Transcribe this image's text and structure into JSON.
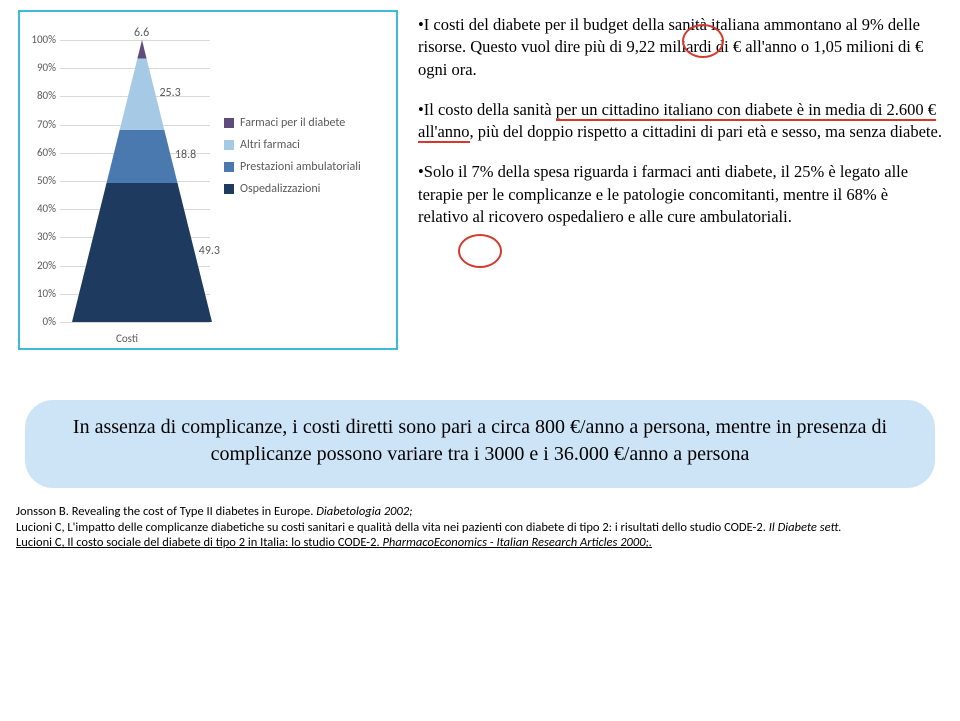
{
  "chart": {
    "type": "stacked-triangle-100pct",
    "y_ticks": [
      "100%",
      "90%",
      "80%",
      "70%",
      "60%",
      "50%",
      "40%",
      "30%",
      "20%",
      "10%",
      "0%"
    ],
    "x_label": "Costi",
    "series": [
      {
        "label": "Farmaci per il diabete",
        "value": 6.6,
        "color": "#604c7a"
      },
      {
        "label": "Altri farmaci",
        "value": 25.3,
        "color": "#a6c9e6"
      },
      {
        "label": "Prestazioni ambulatoriali",
        "value": 18.8,
        "color": "#4a79b0"
      },
      {
        "label": "Ospedalizzazioni",
        "value": 49.3,
        "color": "#1f3a5f"
      }
    ],
    "seg_label_color": "#5a5a5a",
    "grid_color": "#d9d9d9",
    "border_color": "#3fb9d6"
  },
  "bullets": {
    "b1_a": "I costi del diabete per il budget della sanità italiana ammontano al ",
    "b1_pct": "9%",
    "b1_b": " delle risorse. Questo vuol dire più di 9,22 miliardi di € all'anno o 1,05 milioni di € ogni ora.",
    "b2_a": "Il costo della sanità ",
    "b2_u": "per un cittadino italiano con diabete è in media di 2.600 € all'anno",
    "b2_b": ", più del doppio rispetto a cittadini di pari età e sesso, ma senza diabete.",
    "b3_a": "Solo il ",
    "b3_pct": "7%",
    "b3_b": " della spesa riguarda i farmaci anti diabete, il 25% è legato alle terapie per le complicanze e le patologie concomitanti, mentre il 68% è relativo al ricovero ospedaliero e alle cure ambulatoriali."
  },
  "callout": "In assenza di complicanze, i costi diretti sono pari a circa 800 €/anno a persona, mentre in presenza di complicanze possono variare tra i 3000 e i 36.000 €/anno a persona",
  "refs": {
    "r1a": "Jonsson B. Revealing the cost of Type II diabetes in Europe. ",
    "r1b": "Diabetologia 2002;",
    "r2a": "Lucioni C, L'impatto delle complicanze diabetiche su costi sanitari e qualità della vita nei pazienti con diabete di tipo 2: i risultati dello studio CODE-2. ",
    "r2b": "Il Diabete sett.",
    "r3a": "Lucioni C, Il costo sociale del diabete di tipo 2 in Italia: lo studio CODE-2. ",
    "r3b": "PharmacoEconomics - Italian Research Articles 2000;."
  },
  "callout_bg": "#cde4f7"
}
